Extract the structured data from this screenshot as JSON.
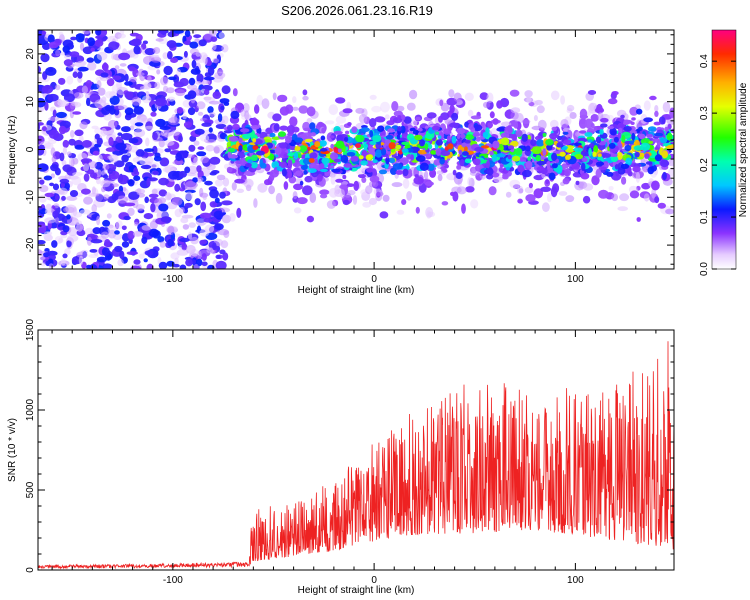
{
  "title": "S206.2026.061.23.16.R19",
  "chart_data": [
    {
      "type": "heatmap",
      "xlabel": "Height of straight line (km)",
      "ylabel": "Frequency (Hz)",
      "xlim": [
        -167,
        149
      ],
      "ylim": [
        -25,
        25
      ],
      "x_ticks": [
        -100,
        0,
        100
      ],
      "y_ticks": [
        -20,
        -10,
        0,
        10,
        20
      ],
      "colorbar": {
        "label": "Normalized spectral amplitude",
        "range": [
          0.0,
          0.46
        ],
        "ticks": [
          "0.0",
          "0.1",
          "0.2",
          "0.3",
          "0.4"
        ],
        "tick_values": [
          0.0,
          0.1,
          0.2,
          0.3,
          0.4
        ]
      },
      "regions": [
        {
          "x_range": [
            -167,
            -73
          ],
          "description_level": "noise",
          "freq_range": [
            -25,
            25
          ],
          "amplitude": 0.08
        },
        {
          "x_range": [
            -73,
            149
          ],
          "freq_range": [
            -5,
            5
          ],
          "amplitude": 0.25
        },
        {
          "x_range": [
            -73,
            149
          ],
          "freq_range": [
            -15,
            12
          ],
          "amplitude": 0.07
        }
      ],
      "colors": {
        "low": "#f0e0ff",
        "mid": "#6a00ff",
        "peak": "#ff0000"
      }
    },
    {
      "type": "line",
      "xlabel": "Height of straight line (km)",
      "ylabel": "SNR (10 * v/v)",
      "xlim": [
        -167,
        149
      ],
      "ylim": [
        0,
        1500
      ],
      "x_ticks": [
        -100,
        0,
        100
      ],
      "y_ticks": [
        0,
        500,
        1000,
        1500
      ],
      "series": [
        {
          "name": "SNR",
          "color": "#ee2222",
          "envelope_x": [
            -167,
            -100,
            -62,
            -61,
            -40,
            -20,
            0,
            20,
            50,
            80,
            110,
            140,
            149
          ],
          "envelope_upper": [
            30,
            40,
            50,
            380,
            430,
            560,
            800,
            1000,
            1200,
            1150,
            1150,
            1300,
            1500
          ],
          "envelope_lower": [
            10,
            15,
            20,
            50,
            80,
            120,
            180,
            220,
            230,
            250,
            200,
            150,
            120
          ]
        }
      ]
    }
  ]
}
